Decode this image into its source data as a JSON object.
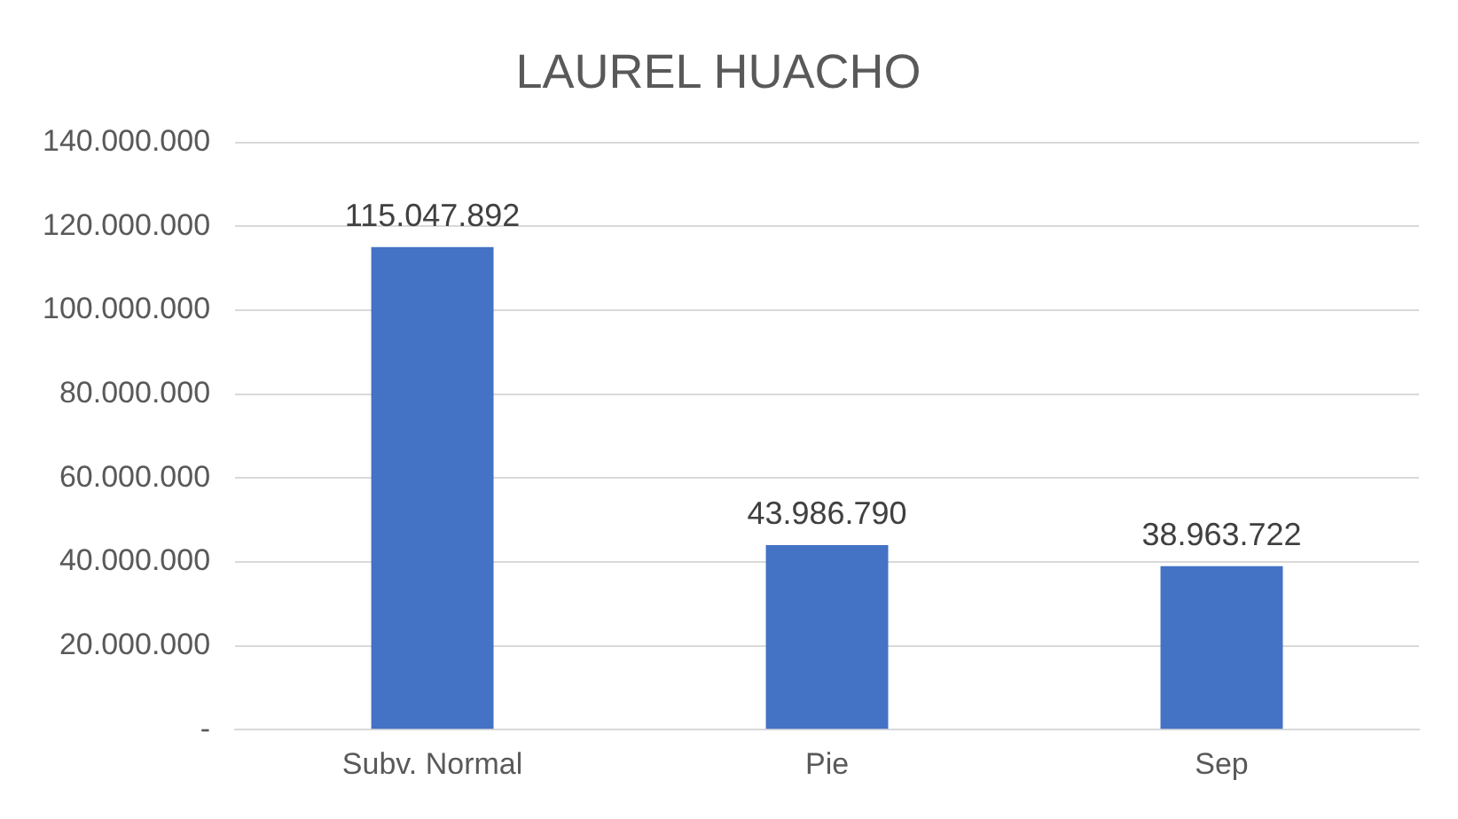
{
  "chart_data": {
    "type": "bar",
    "title": "LAUREL HUACHO",
    "categories": [
      "Subv. Normal",
      "Pie",
      "Sep"
    ],
    "values": [
      115047892,
      43986790,
      38963722
    ],
    "value_labels": [
      "115.047.892",
      "43.986.790",
      "38.963.722"
    ],
    "color": "#4472c4",
    "ylim": [
      0,
      140000000
    ],
    "yticks": [
      {
        "value": 0,
        "label": "-"
      },
      {
        "value": 20000000,
        "label": "20.000.000"
      },
      {
        "value": 40000000,
        "label": "40.000.000"
      },
      {
        "value": 60000000,
        "label": "60.000.000"
      },
      {
        "value": 80000000,
        "label": "80.000.000"
      },
      {
        "value": 100000000,
        "label": "100.000.000"
      },
      {
        "value": 120000000,
        "label": "120.000.000"
      },
      {
        "value": 140000000,
        "label": "140.000.000"
      }
    ],
    "grid": "y",
    "legend": false
  }
}
